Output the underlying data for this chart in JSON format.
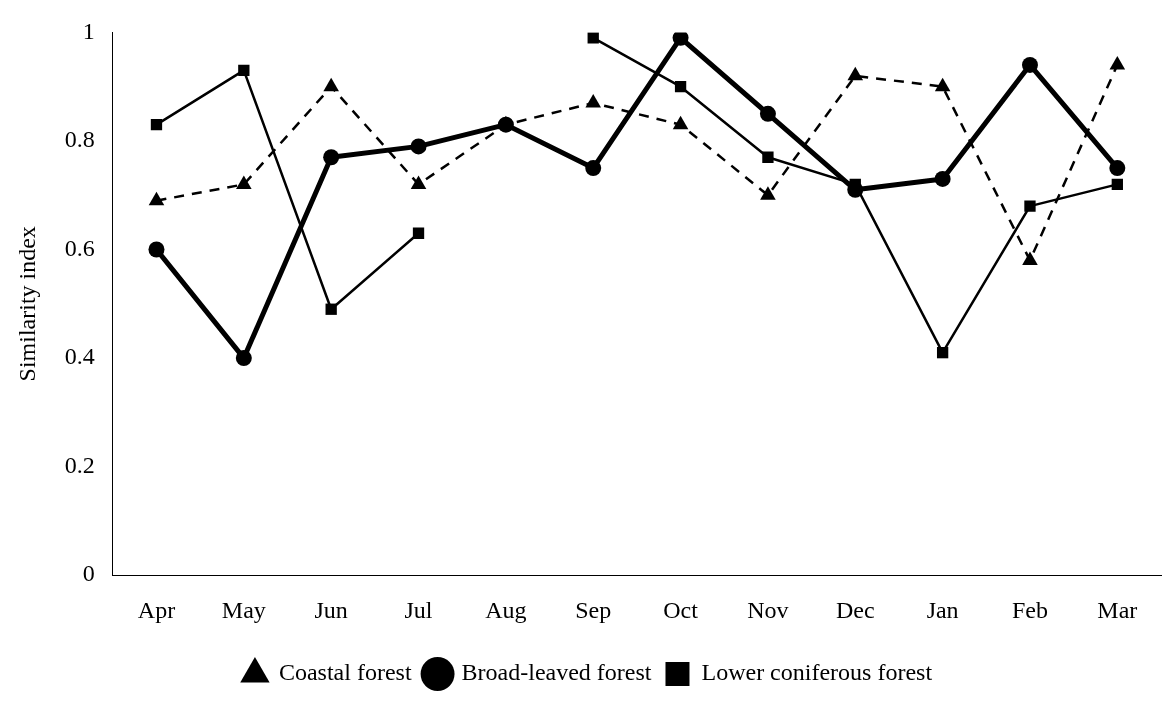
{
  "chart_data": {
    "type": "line",
    "ylabel": "Similarity index",
    "categories": [
      "Apr",
      "May",
      "Jun",
      "Jul",
      "Aug",
      "Sep",
      "Oct",
      "Nov",
      "Dec",
      "Jan",
      "Feb",
      "Mar"
    ],
    "series": [
      {
        "name": "Coastal forest",
        "color": "#000000",
        "marker": "triangle",
        "line_style": "dashed",
        "values": [
          0.69,
          0.72,
          0.9,
          0.72,
          0.83,
          0.87,
          0.83,
          0.7,
          0.92,
          0.9,
          0.58,
          0.94
        ]
      },
      {
        "name": "Broad-leaved forest",
        "color": "#000000",
        "marker": "circle",
        "line_style": "solid",
        "values": [
          0.6,
          0.4,
          0.77,
          0.79,
          0.83,
          0.75,
          0.99,
          0.85,
          0.71,
          0.73,
          0.94,
          0.75
        ]
      },
      {
        "name": "Lower coniferous forest",
        "color": "#000000",
        "marker": "square",
        "line_style": "solid",
        "values": [
          0.83,
          0.93,
          0.49,
          0.63,
          null,
          0.99,
          0.9,
          0.77,
          0.72,
          0.41,
          0.68,
          0.72
        ]
      }
    ],
    "ylim": [
      0,
      1
    ],
    "yticks": [
      0,
      0.2,
      0.4,
      0.6,
      0.8,
      1
    ],
    "grid": false,
    "legend": "bottom"
  }
}
